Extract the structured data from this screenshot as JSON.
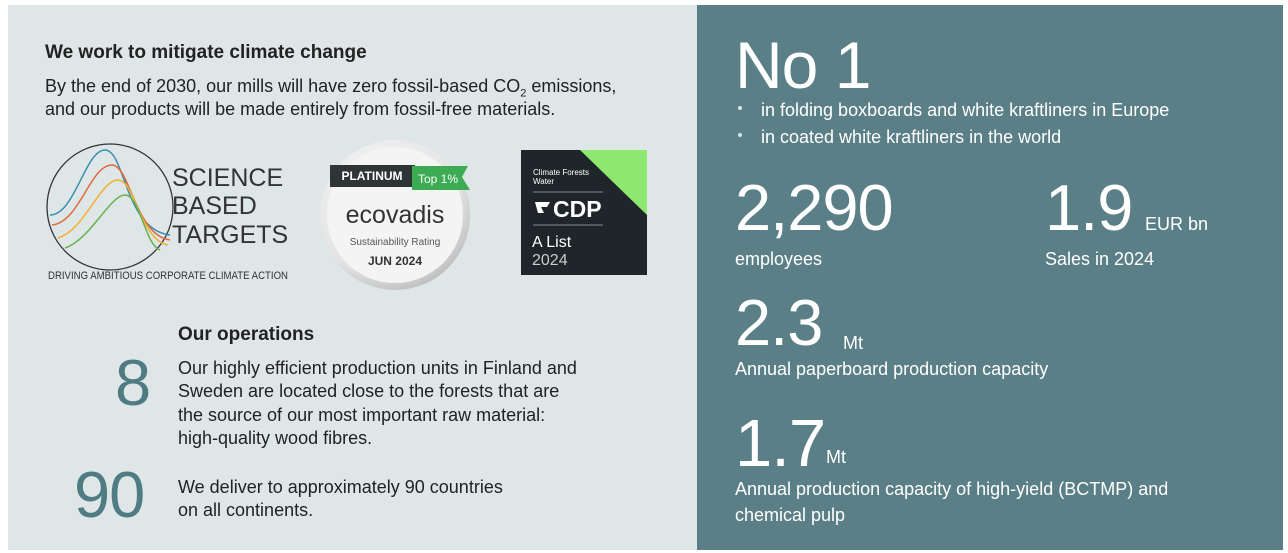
{
  "climate": {
    "title": "We work to mitigate climate change",
    "line1_before": "By the end of 2030, our mills will have zero fossil-based CO",
    "line1_sub": "2",
    "line1_after": " emissions,",
    "line2": "and our products will be made entirely from fossil-free materials."
  },
  "logos": {
    "sbt": {
      "words": [
        "SCIENCE",
        "BASED",
        "TARGETS"
      ],
      "tagline": "DRIVING AMBITIOUS CORPORATE CLIMATE ACTION"
    },
    "ecovadis": {
      "level": "PLATINUM",
      "rank": "Top 1%",
      "brand": "ecovadis",
      "rating": "Sustainability Rating",
      "date": "JUN 2024"
    },
    "cdp": {
      "themes": [
        "Climate Forests",
        "Water"
      ],
      "brand": "CDP",
      "grade": "A List",
      "year": "2024"
    }
  },
  "operations": {
    "title": "Our operations",
    "items": [
      {
        "number": "8",
        "lines": [
          "Our highly efficient production units in Finland and",
          "Sweden are located close to the forests that are",
          "the source of our most important raw material:",
          "high-quality wood fibres."
        ]
      },
      {
        "number": "90",
        "lines": [
          "We deliver to approximately 90 countries",
          "on all continents."
        ]
      }
    ]
  },
  "highlights": {
    "rank": {
      "number": "No 1",
      "bullets": [
        "in folding boxboards and white kraftliners in Europe",
        "in coated white kraftliners in the world"
      ]
    },
    "stats": [
      {
        "number": "2,290",
        "labels": [
          "employees"
        ]
      },
      {
        "number": "1.9",
        "unit": "EUR bn",
        "labels": [
          "Sales in 2024"
        ]
      },
      {
        "number": "2.3",
        "unit": "Mt",
        "labels": [
          "Annual paperboard production capacity"
        ]
      },
      {
        "number": "1.7",
        "unit": "Mt",
        "labels": [
          "Annual production capacity of high-yield (BCTMP) and",
          "chemical pulp"
        ]
      }
    ]
  }
}
